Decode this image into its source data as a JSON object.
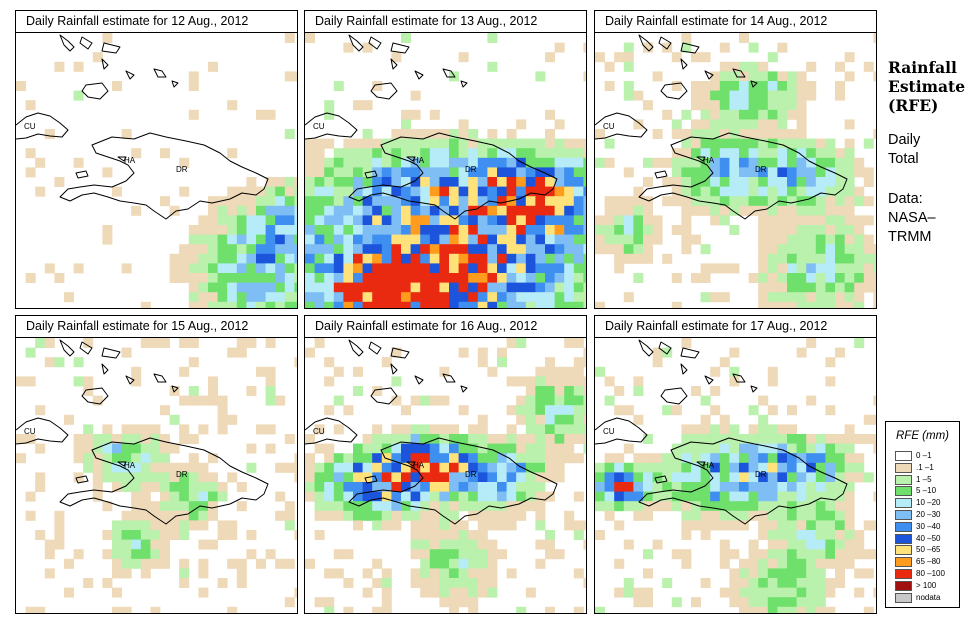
{
  "panels": [
    {
      "title": "Daily Rainfall estimate for  12 Aug., 2012",
      "date": "12 Aug., 2012"
    },
    {
      "title": "Daily Rainfall estimate for  13 Aug., 2012",
      "date": "13 Aug., 2012"
    },
    {
      "title": "Daily Rainfall estimate for  14 Aug., 2012",
      "date": "14 Aug., 2012"
    },
    {
      "title": "Daily Rainfall estimate for  15 Aug., 2012",
      "date": "15 Aug., 2012"
    },
    {
      "title": "Daily Rainfall estimate for  16 Aug., 2012",
      "date": "16 Aug., 2012"
    },
    {
      "title": "Daily Rainfall estimate for  17 Aug., 2012",
      "date": "17 Aug., 2012"
    }
  ],
  "map_labels": {
    "cuba": "CU",
    "haiti": "HA",
    "dominican_republic": "DR"
  },
  "sidebar": {
    "title_line1": "Rainfall",
    "title_line2": "Estimate",
    "title_line3": "(RFE)",
    "period_line1": "Daily",
    "period_line2": "Total",
    "source_line1": "Data:",
    "source_line2": "NASA–",
    "source_line3": "TRMM"
  },
  "legend": {
    "title": "RFE (mm)",
    "items": [
      {
        "label": "0 –1",
        "color": "#ffffff"
      },
      {
        "label": ".1 –1",
        "color": "#eed9b8"
      },
      {
        "label": "1 –5",
        "color": "#b9f1ad"
      },
      {
        "label": "5 –10",
        "color": "#6ee06b"
      },
      {
        "label": "10 –20",
        "color": "#b6ecf7"
      },
      {
        "label": "20 –30",
        "color": "#7fbdf5"
      },
      {
        "label": "30 –40",
        "color": "#3f8ff0"
      },
      {
        "label": "40 –50",
        "color": "#1c55dc"
      },
      {
        "label": "50 –65",
        "color": "#ffe27a"
      },
      {
        "label": "65 –80",
        "color": "#ff9c1e"
      },
      {
        "label": "80 –100",
        "color": "#ea2a10"
      },
      {
        "label": "> 100",
        "color": "#a01010"
      },
      {
        "label": "nodata",
        "color": "#c8c8c8"
      }
    ]
  }
}
